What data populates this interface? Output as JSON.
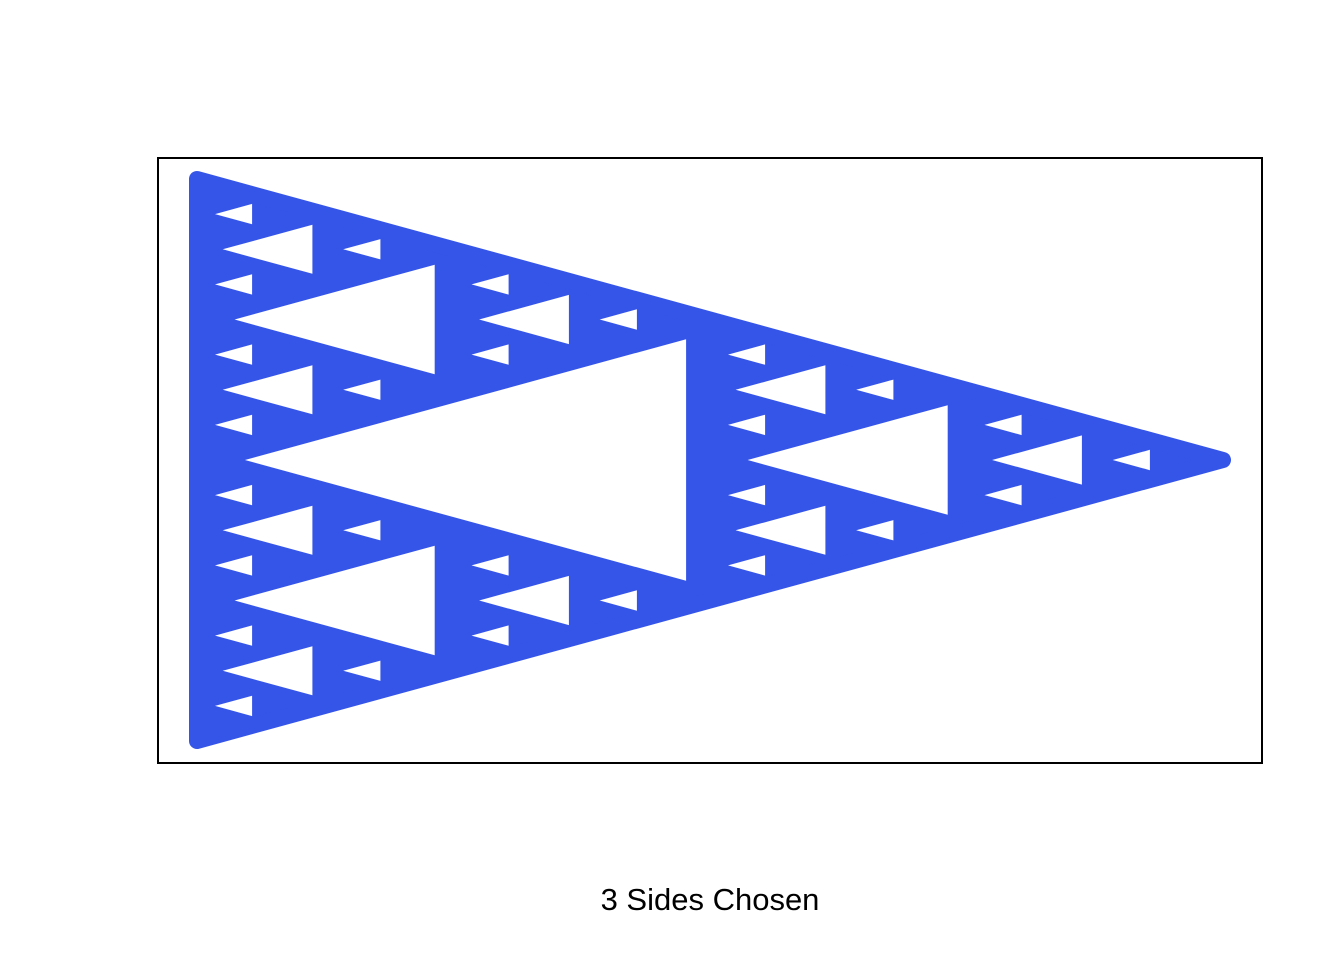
{
  "figure": {
    "caption": "3 Sides Chosen",
    "sides_chosen": 3,
    "recursion_depth": 4,
    "colors": {
      "fill": "#3555e8",
      "hole": "#ffffff",
      "frame": "#000000",
      "background": "#ffffff"
    }
  }
}
